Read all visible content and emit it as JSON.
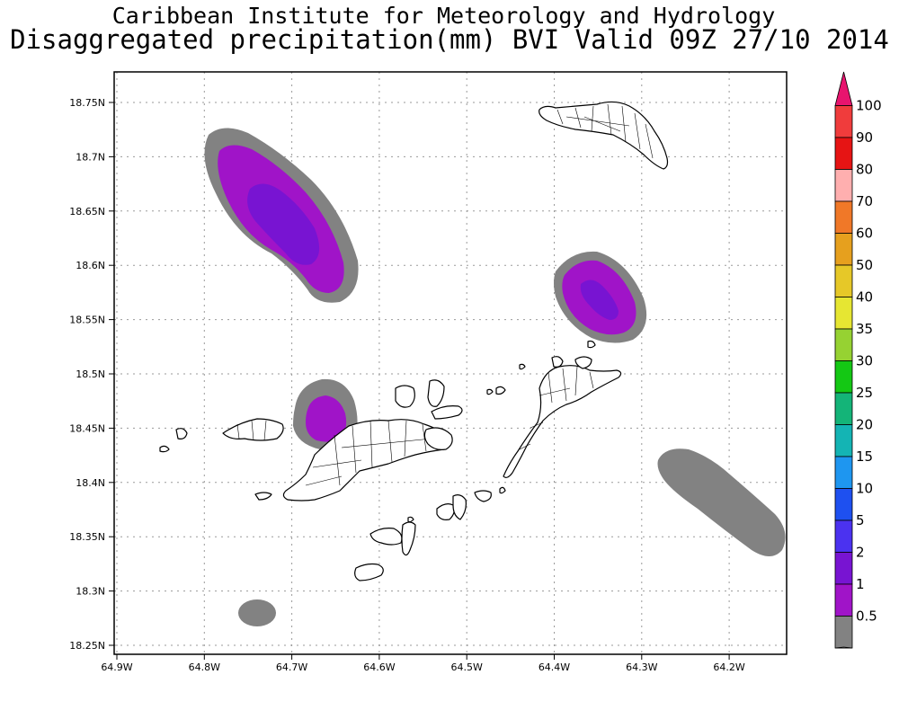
{
  "title": {
    "line1": "Caribbean Institute for Meteorology and Hydrology",
    "line2": "Disaggregated precipitation(mm) BVI Valid 09Z 27/10 2014"
  },
  "map": {
    "lat_labels": [
      "18.75N",
      "18.7N",
      "18.65N",
      "18.6N",
      "18.55N",
      "18.5N",
      "18.45N",
      "18.4N",
      "18.35N",
      "18.3N",
      "18.25N"
    ],
    "lon_labels": [
      "64.9W",
      "64.8W",
      "64.7W",
      "64.6W",
      "64.5W",
      "64.4W",
      "64.3W",
      "64.2W"
    ],
    "lat_values": [
      18.75,
      18.7,
      18.65,
      18.6,
      18.55,
      18.5,
      18.45,
      18.4,
      18.35,
      18.3,
      18.25
    ],
    "lon_values": [
      -64.9,
      -64.8,
      -64.7,
      -64.6,
      -64.5,
      -64.4,
      -64.3,
      -64.2
    ]
  },
  "colorbar": {
    "labels": [
      "100",
      "90",
      "80",
      "70",
      "60",
      "50",
      "40",
      "35",
      "30",
      "25",
      "20",
      "15",
      "10",
      "5",
      "2",
      "1",
      "0.5"
    ],
    "colors": [
      "#e8146e",
      "#f03c3c",
      "#e61414",
      "#ffafaf",
      "#f07828",
      "#e6a01e",
      "#e6c828",
      "#e6e632",
      "#96d232",
      "#14c814",
      "#14b478",
      "#14b4b4",
      "#1e96f0",
      "#1e50f0",
      "#4b32f0",
      "#7814d2",
      "#a014c8",
      "#828282",
      "#ffffff"
    ]
  },
  "precip_fields": [
    {
      "name": "northwest-band",
      "level_colors": [
        "#828282",
        "#a014c8",
        "#7814d2"
      ]
    },
    {
      "name": "east-cell",
      "level_colors": [
        "#828282",
        "#a014c8",
        "#7814d2"
      ]
    },
    {
      "name": "tortola-west-cell",
      "level_colors": [
        "#828282",
        "#a014c8"
      ]
    },
    {
      "name": "southeast-band",
      "level_colors": [
        "#828282"
      ]
    },
    {
      "name": "south-spot",
      "level_colors": [
        "#828282"
      ]
    }
  ]
}
